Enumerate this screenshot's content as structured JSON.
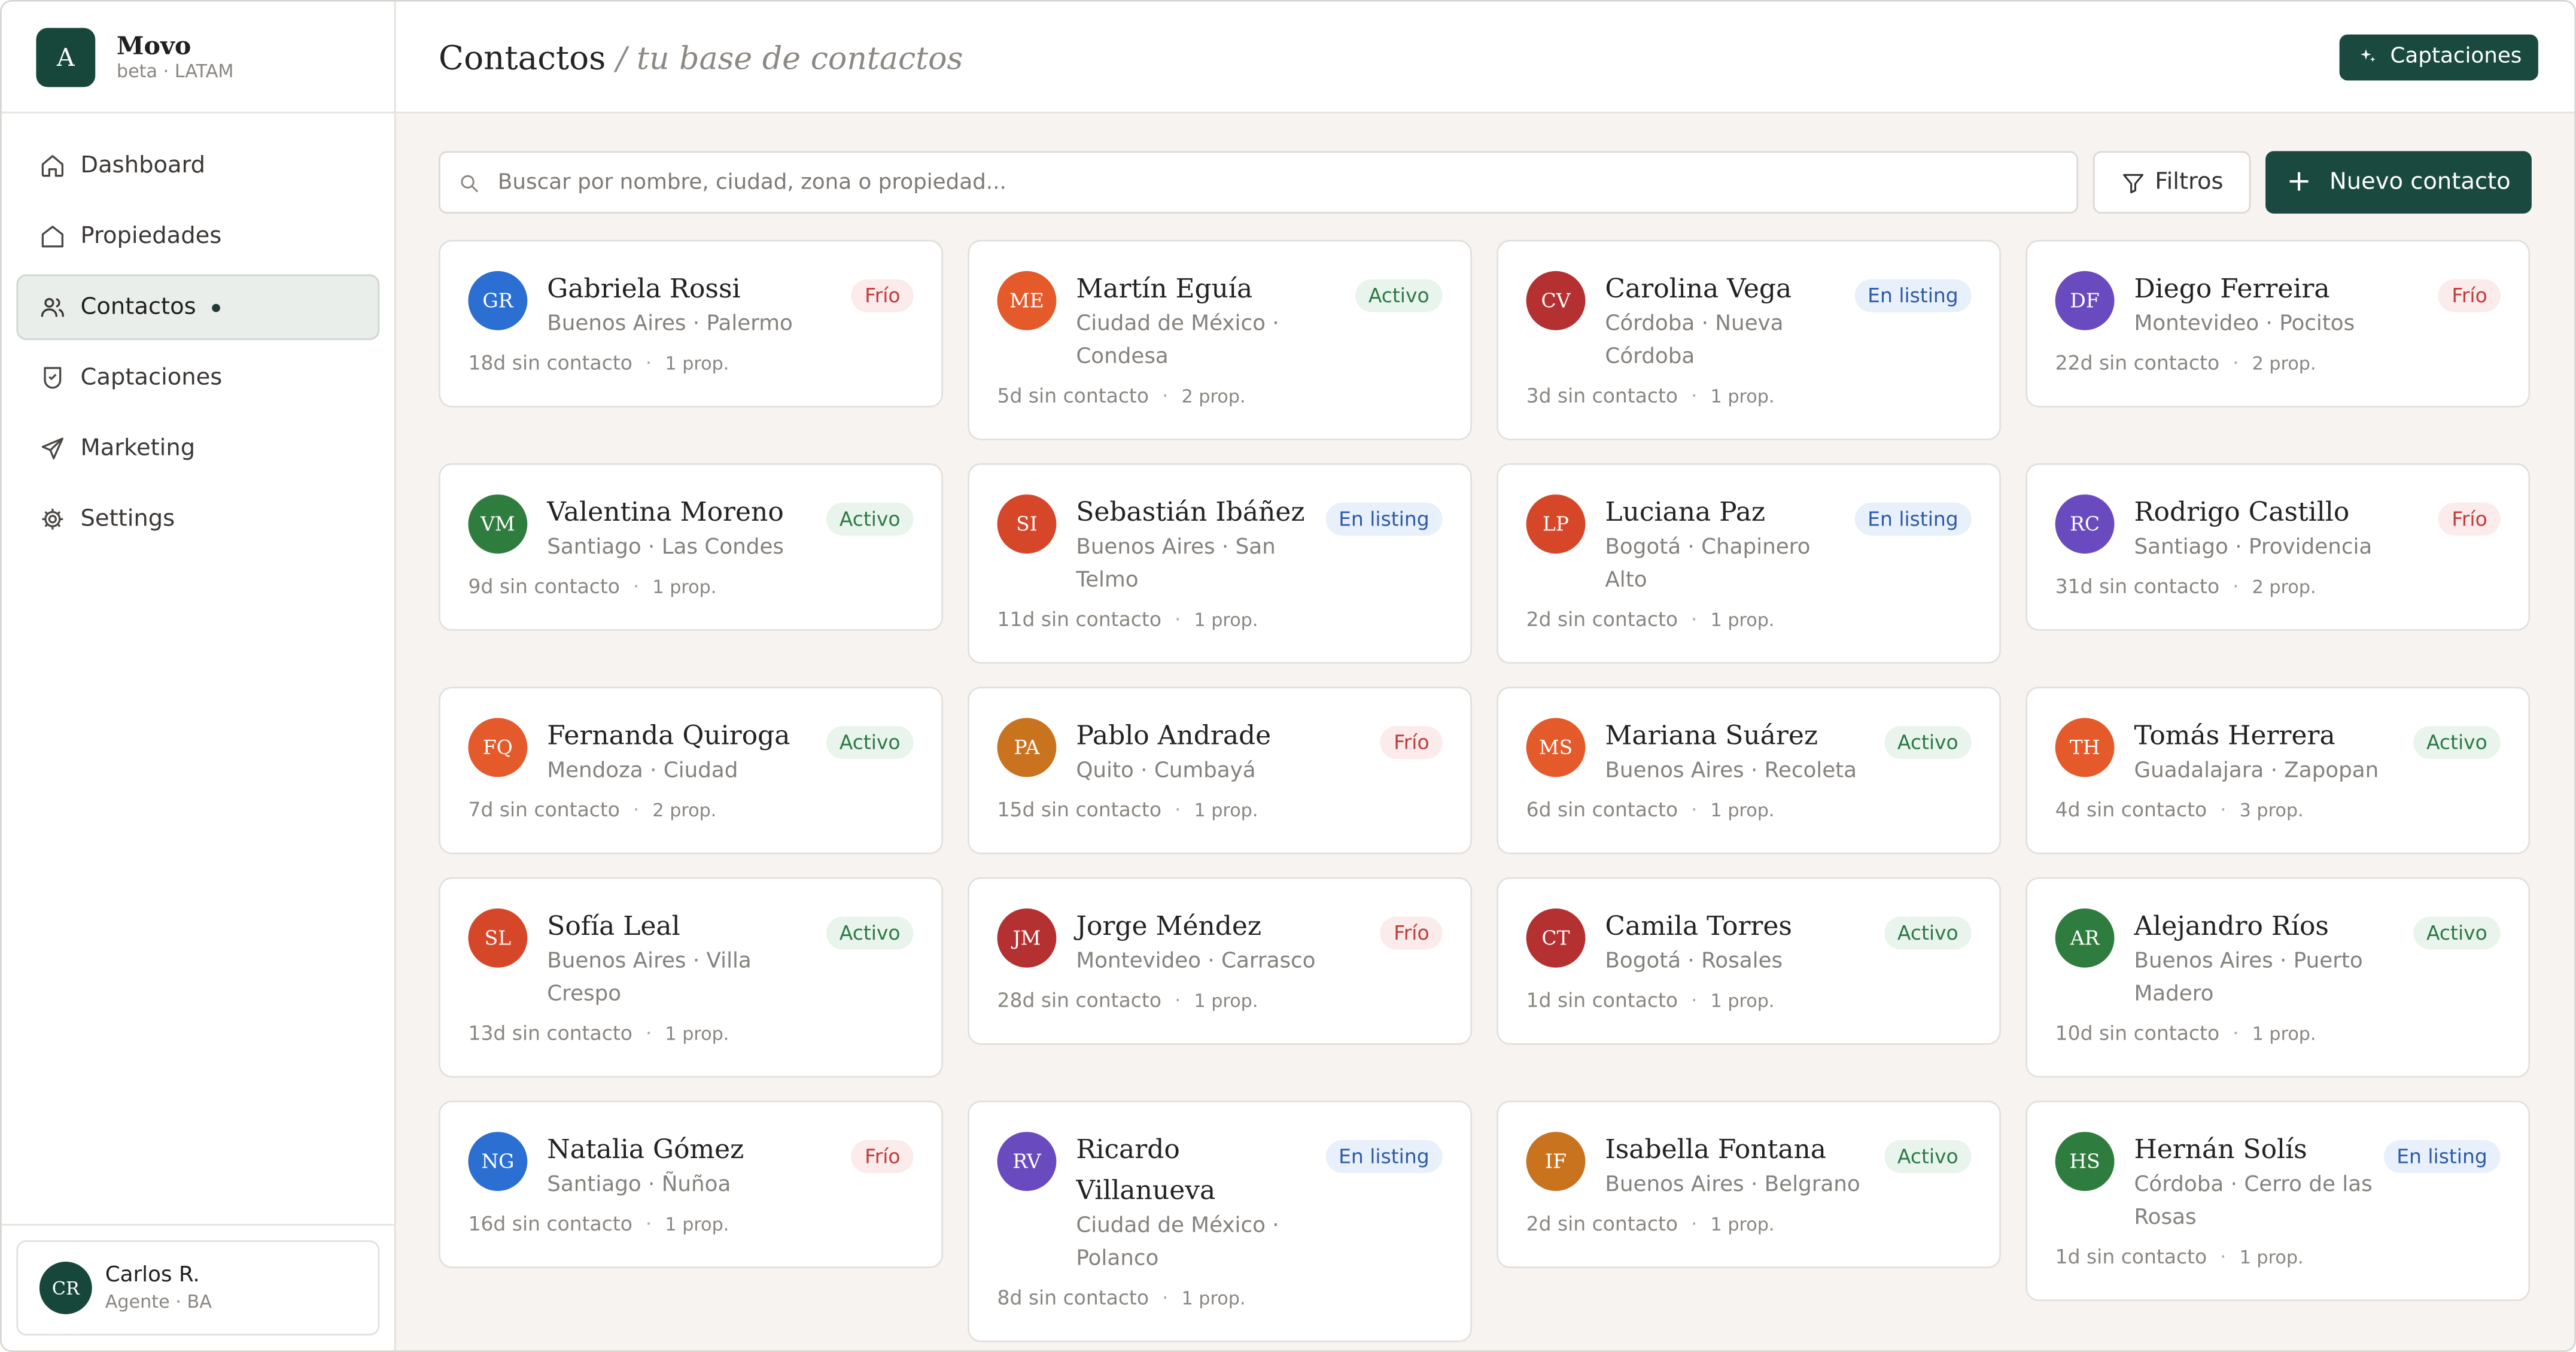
{
  "app": {
    "logo_letter": "A",
    "name": "Movo",
    "subtitle": "beta · LATAM"
  },
  "sidebar": {
    "items": [
      {
        "label": "Dashboard",
        "icon": "home-icon"
      },
      {
        "label": "Propiedades",
        "icon": "house-icon"
      },
      {
        "label": "Contactos",
        "icon": "users-icon",
        "active": true
      },
      {
        "label": "Captaciones",
        "icon": "badge-icon"
      },
      {
        "label": "Marketing",
        "icon": "send-icon"
      },
      {
        "label": "Settings",
        "icon": "gear-icon"
      }
    ]
  },
  "user": {
    "initials": "CR",
    "name": "Carlos R.",
    "role": "Agente · BA"
  },
  "header": {
    "title": "Contactos",
    "subtitle": "/ tu base de contactos",
    "action_label": "Captaciones"
  },
  "toolbar": {
    "search_placeholder": "Buscar por nombre, ciudad, zona o propiedad...",
    "filters_label": "Filtros",
    "new_contact_label": "Nuevo contacto",
    "new_contact_icon": "+"
  },
  "colors": {
    "brand": "#1a4a3f",
    "frio": "#bf3b3b",
    "activo": "#2c7a45",
    "listing": "#2c5aa7"
  },
  "contacts": [
    {
      "initials": "GR",
      "name": "Gabriela Rossi",
      "location": "Buenos Aires · Palermo",
      "status": "Frío",
      "status_type": "frio",
      "last_contact": "18d sin contacto",
      "props": "1 prop.",
      "color": "#2a6fd1"
    },
    {
      "initials": "ME",
      "name": "Martín Eguía",
      "location": "Ciudad de México · Condesa",
      "status": "Activo",
      "status_type": "activo",
      "last_contact": "5d sin contacto",
      "props": "2 prop.",
      "color": "#e55a2b"
    },
    {
      "initials": "CV",
      "name": "Carolina Vega",
      "location": "Córdoba · Nueva Córdoba",
      "status": "En listing",
      "status_type": "listing",
      "last_contact": "3d sin contacto",
      "props": "1 prop.",
      "color": "#b53030"
    },
    {
      "initials": "DF",
      "name": "Diego Ferreira",
      "location": "Montevideo · Pocitos",
      "status": "Frío",
      "status_type": "frio",
      "last_contact": "22d sin contacto",
      "props": "2 prop.",
      "color": "#6a4bbf"
    },
    {
      "initials": "VM",
      "name": "Valentina Moreno",
      "location": "Santiago · Las Condes",
      "status": "Activo",
      "status_type": "activo",
      "last_contact": "9d sin contacto",
      "props": "1 prop.",
      "color": "#2e7d3e"
    },
    {
      "initials": "SI",
      "name": "Sebastián Ibáñez",
      "location": "Buenos Aires · San Telmo",
      "status": "En listing",
      "status_type": "listing",
      "last_contact": "11d sin contacto",
      "props": "1 prop.",
      "color": "#d6472a"
    },
    {
      "initials": "LP",
      "name": "Luciana Paz",
      "location": "Bogotá · Chapinero Alto",
      "status": "En listing",
      "status_type": "listing",
      "last_contact": "2d sin contacto",
      "props": "1 prop.",
      "color": "#d6472a"
    },
    {
      "initials": "RC",
      "name": "Rodrigo Castillo",
      "location": "Santiago · Providencia",
      "status": "Frío",
      "status_type": "frio",
      "last_contact": "31d sin contacto",
      "props": "2 prop.",
      "color": "#6a4bbf"
    },
    {
      "initials": "FQ",
      "name": "Fernanda Quiroga",
      "location": "Mendoza · Ciudad",
      "status": "Activo",
      "status_type": "activo",
      "last_contact": "7d sin contacto",
      "props": "2 prop.",
      "color": "#e55a2b"
    },
    {
      "initials": "PA",
      "name": "Pablo Andrade",
      "location": "Quito · Cumbayá",
      "status": "Frío",
      "status_type": "frio",
      "last_contact": "15d sin contacto",
      "props": "1 prop.",
      "color": "#c9731f"
    },
    {
      "initials": "MS",
      "name": "Mariana Suárez",
      "location": "Buenos Aires · Recoleta",
      "status": "Activo",
      "status_type": "activo",
      "last_contact": "6d sin contacto",
      "props": "1 prop.",
      "color": "#e55a2b"
    },
    {
      "initials": "TH",
      "name": "Tomás Herrera",
      "location": "Guadalajara · Zapopan",
      "status": "Activo",
      "status_type": "activo",
      "last_contact": "4d sin contacto",
      "props": "3 prop.",
      "color": "#e55a2b"
    },
    {
      "initials": "SL",
      "name": "Sofía Leal",
      "location": "Buenos Aires · Villa Crespo",
      "status": "Activo",
      "status_type": "activo",
      "last_contact": "13d sin contacto",
      "props": "1 prop.",
      "color": "#d6472a"
    },
    {
      "initials": "JM",
      "name": "Jorge Méndez",
      "location": "Montevideo · Carrasco",
      "status": "Frío",
      "status_type": "frio",
      "last_contact": "28d sin contacto",
      "props": "1 prop.",
      "color": "#b53030"
    },
    {
      "initials": "CT",
      "name": "Camila Torres",
      "location": "Bogotá · Rosales",
      "status": "Activo",
      "status_type": "activo",
      "last_contact": "1d sin contacto",
      "props": "1 prop.",
      "color": "#b53030"
    },
    {
      "initials": "AR",
      "name": "Alejandro Ríos",
      "location": "Buenos Aires · Puerto Madero",
      "status": "Activo",
      "status_type": "activo",
      "last_contact": "10d sin contacto",
      "props": "1 prop.",
      "color": "#2e7d3e"
    },
    {
      "initials": "NG",
      "name": "Natalia Gómez",
      "location": "Santiago · Ñuñoa",
      "status": "Frío",
      "status_type": "frio",
      "last_contact": "16d sin contacto",
      "props": "1 prop.",
      "color": "#2a6fd1"
    },
    {
      "initials": "RV",
      "name": "Ricardo Villanueva",
      "location": "Ciudad de México · Polanco",
      "status": "En listing",
      "status_type": "listing",
      "last_contact": "8d sin contacto",
      "props": "1 prop.",
      "color": "#6a4bbf"
    },
    {
      "initials": "IF",
      "name": "Isabella Fontana",
      "location": "Buenos Aires · Belgrano",
      "status": "Activo",
      "status_type": "activo",
      "last_contact": "2d sin contacto",
      "props": "1 prop.",
      "color": "#c9731f"
    },
    {
      "initials": "HS",
      "name": "Hernán Solís",
      "location": "Córdoba · Cerro de las Rosas",
      "status": "En listing",
      "status_type": "listing",
      "last_contact": "1d sin contacto",
      "props": "1 prop.",
      "color": "#2e7d3e"
    }
  ]
}
